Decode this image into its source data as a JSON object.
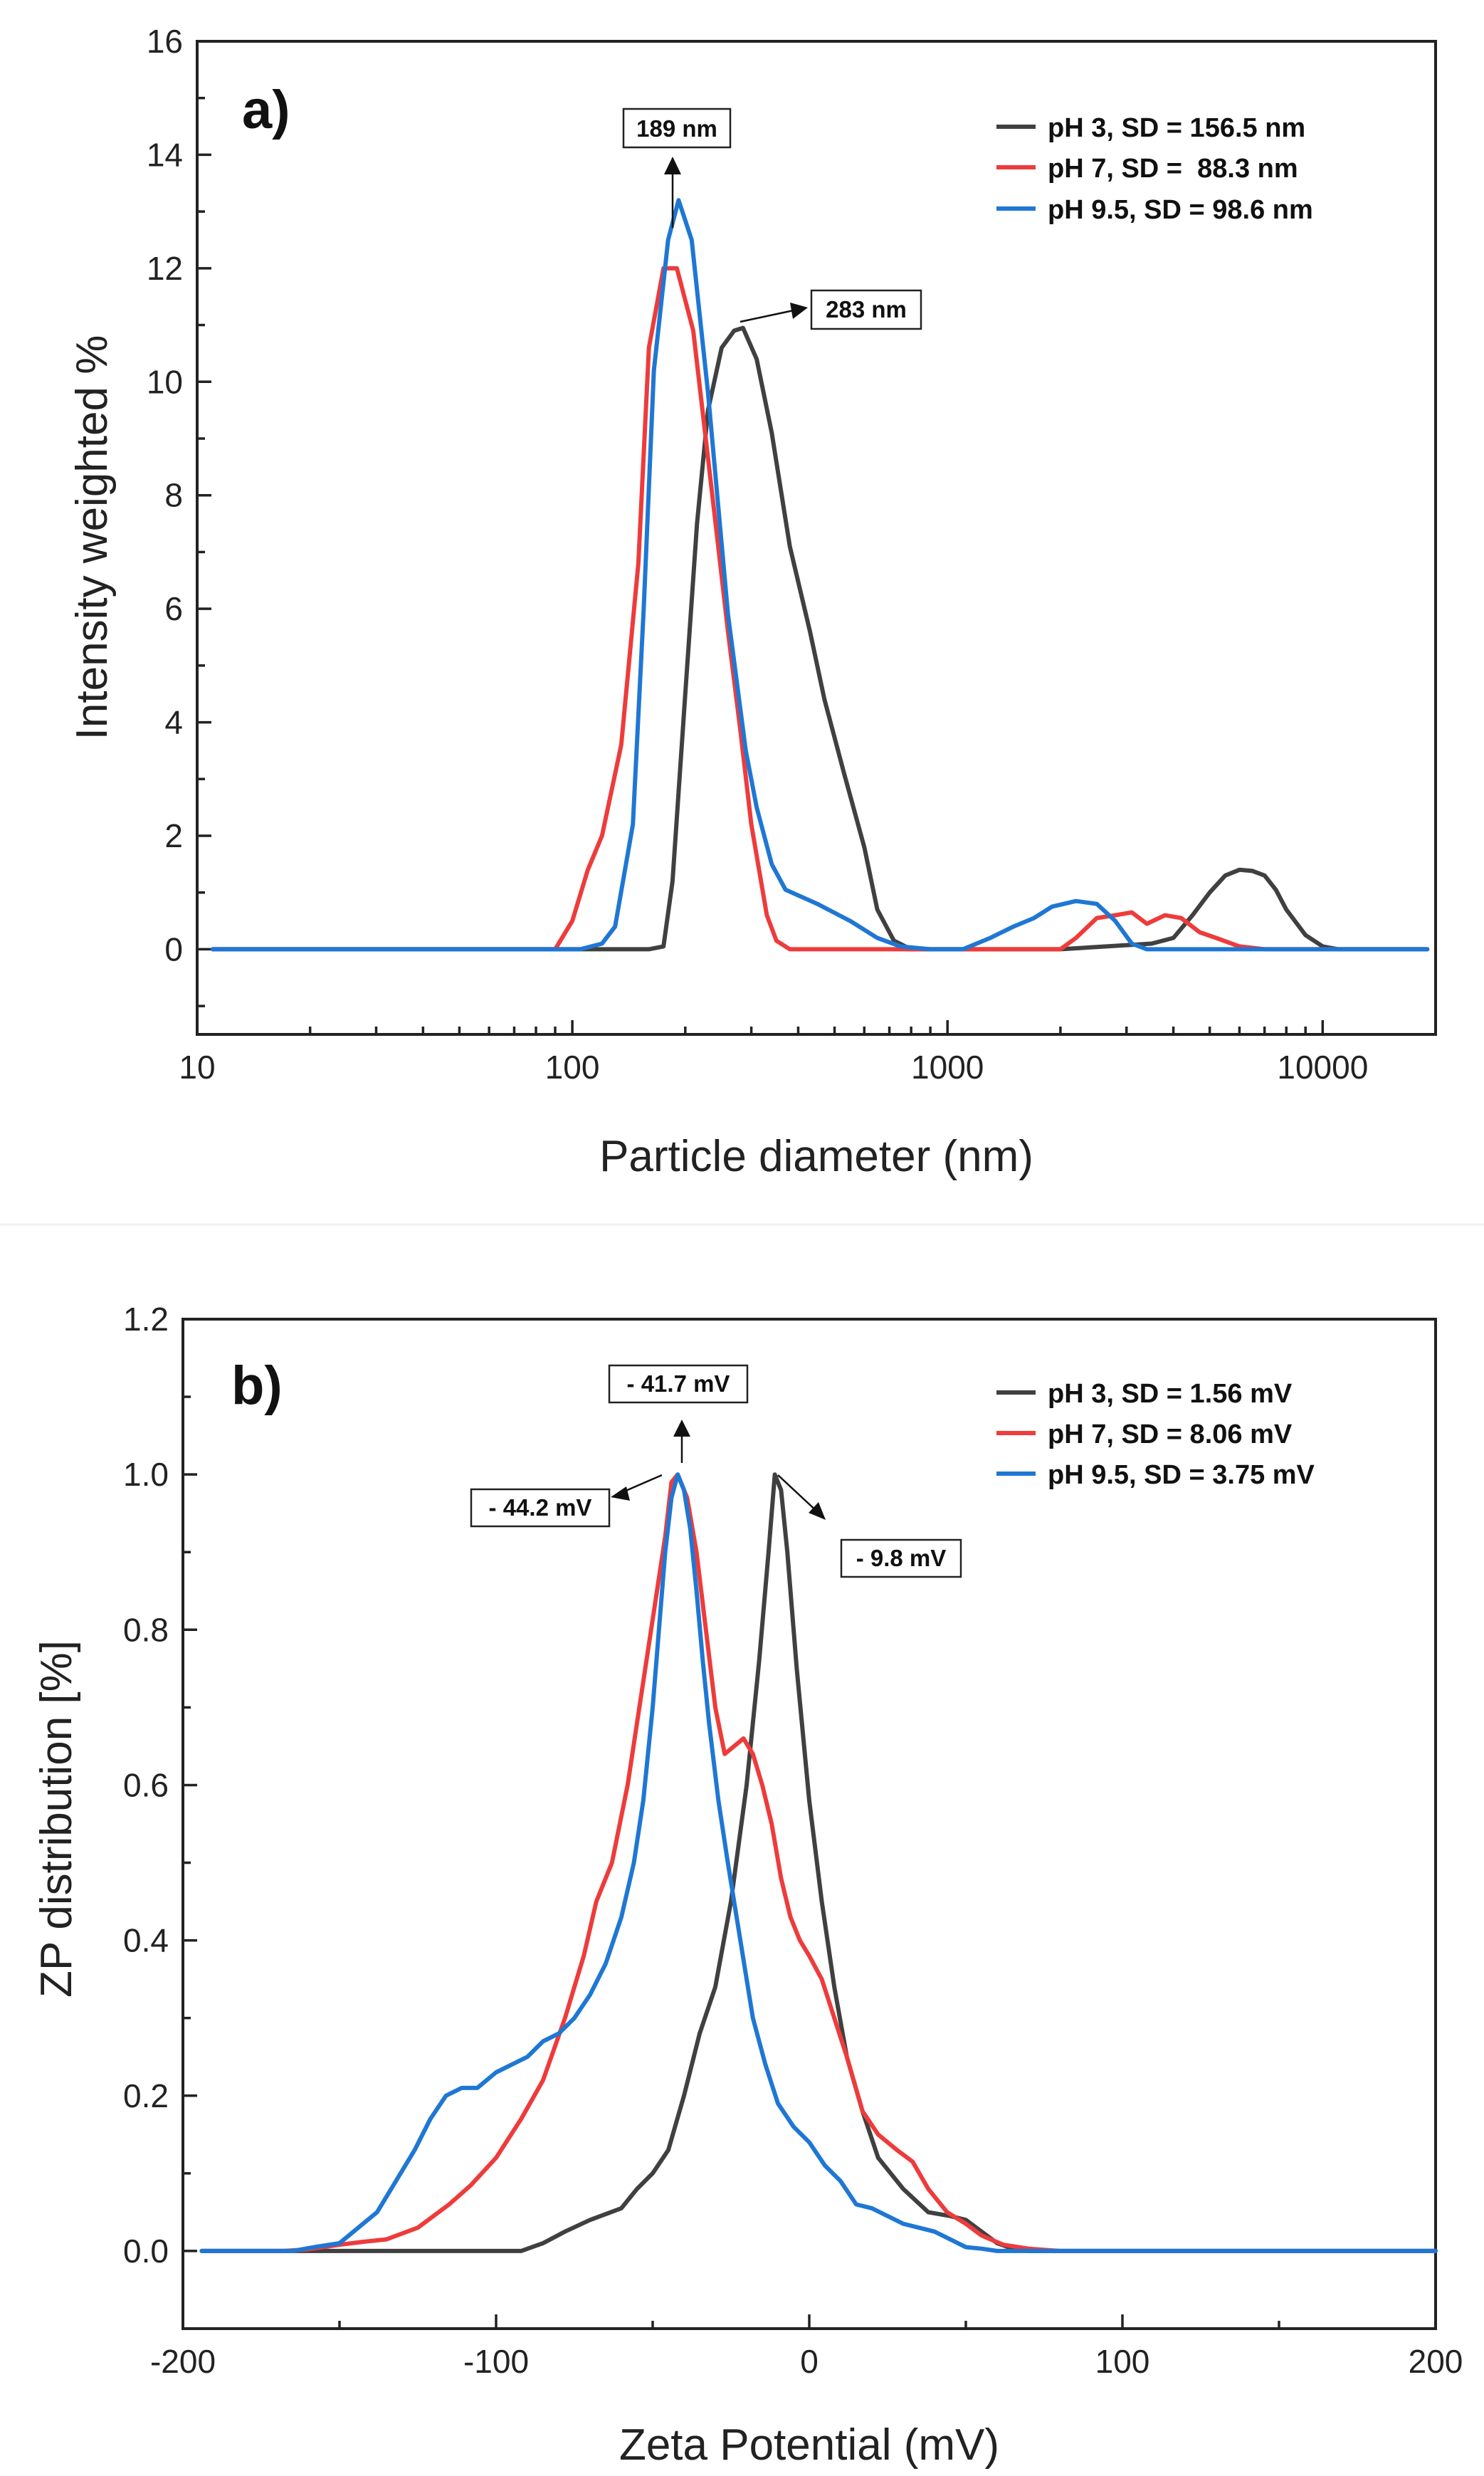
{
  "chart_data": [
    {
      "id": "a",
      "type": "line",
      "panel_label": "a)",
      "xscale": "log",
      "xlim": [
        10,
        20000
      ],
      "ylim": [
        -1.5,
        16
      ],
      "xticks": [
        10,
        100,
        1000,
        10000
      ],
      "xtick_labels": [
        "10",
        "100",
        "1000",
        "10000"
      ],
      "yticks": [
        0,
        2,
        4,
        6,
        8,
        10,
        12,
        14,
        16
      ],
      "ytick_labels": [
        "0",
        "2",
        "4",
        "6",
        "8",
        "10",
        "12",
        "14",
        "16"
      ],
      "xlabel": "Particle diameter (nm)",
      "ylabel": "Intensity weighted %",
      "legend_position": "top-right",
      "series": [
        {
          "name": "pH 3, SD = 156.5 nm",
          "color": "#404040",
          "points": [
            [
              11,
              0
            ],
            [
              160,
              0
            ],
            [
              175,
              0.05
            ],
            [
              185,
              1.2
            ],
            [
              200,
              4.5
            ],
            [
              215,
              7.5
            ],
            [
              230,
              9.5
            ],
            [
              250,
              10.6
            ],
            [
              270,
              10.9
            ],
            [
              285,
              10.95
            ],
            [
              310,
              10.4
            ],
            [
              340,
              9.1
            ],
            [
              380,
              7.1
            ],
            [
              430,
              5.6
            ],
            [
              470,
              4.4
            ],
            [
              530,
              3.1
            ],
            [
              600,
              1.8
            ],
            [
              650,
              0.7
            ],
            [
              720,
              0.15
            ],
            [
              800,
              0
            ],
            [
              2000,
              0
            ],
            [
              3500,
              0.1
            ],
            [
              4000,
              0.2
            ],
            [
              4500,
              0.6
            ],
            [
              5000,
              1.0
            ],
            [
              5500,
              1.3
            ],
            [
              6000,
              1.4
            ],
            [
              6500,
              1.38
            ],
            [
              7000,
              1.3
            ],
            [
              7500,
              1.05
            ],
            [
              8000,
              0.7
            ],
            [
              9000,
              0.25
            ],
            [
              10000,
              0.05
            ],
            [
              11000,
              0
            ],
            [
              19000,
              0
            ]
          ]
        },
        {
          "name": "pH 7, SD =  88.3 nm",
          "color": "#ee3b3b",
          "points": [
            [
              11,
              0
            ],
            [
              90,
              0
            ],
            [
              100,
              0.5
            ],
            [
              110,
              1.4
            ],
            [
              120,
              2.0
            ],
            [
              135,
              3.6
            ],
            [
              150,
              6.8
            ],
            [
              160,
              10.6
            ],
            [
              175,
              12.0
            ],
            [
              190,
              12.0
            ],
            [
              210,
              10.9
            ],
            [
              240,
              7.6
            ],
            [
              260,
              5.6
            ],
            [
              280,
              3.9
            ],
            [
              300,
              2.2
            ],
            [
              330,
              0.6
            ],
            [
              350,
              0.15
            ],
            [
              380,
              0
            ],
            [
              2000,
              0
            ],
            [
              2200,
              0.2
            ],
            [
              2500,
              0.55
            ],
            [
              2800,
              0.6
            ],
            [
              3100,
              0.65
            ],
            [
              3400,
              0.45
            ],
            [
              3800,
              0.6
            ],
            [
              4200,
              0.55
            ],
            [
              4700,
              0.3
            ],
            [
              5200,
              0.2
            ],
            [
              6000,
              0.05
            ],
            [
              7000,
              0
            ],
            [
              19000,
              0
            ]
          ]
        },
        {
          "name": "pH 9.5, SD = 98.6 nm",
          "color": "#1f77d4",
          "points": [
            [
              11,
              0
            ],
            [
              105,
              0
            ],
            [
              120,
              0.1
            ],
            [
              130,
              0.4
            ],
            [
              145,
              2.2
            ],
            [
              155,
              6.0
            ],
            [
              165,
              10.2
            ],
            [
              180,
              12.5
            ],
            [
              192,
              13.2
            ],
            [
              208,
              12.5
            ],
            [
              230,
              9.8
            ],
            [
              260,
              5.9
            ],
            [
              290,
              3.5
            ],
            [
              310,
              2.5
            ],
            [
              340,
              1.5
            ],
            [
              370,
              1.05
            ],
            [
              450,
              0.8
            ],
            [
              550,
              0.5
            ],
            [
              650,
              0.2
            ],
            [
              750,
              0.05
            ],
            [
              900,
              0
            ],
            [
              1100,
              0
            ],
            [
              1300,
              0.2
            ],
            [
              1500,
              0.4
            ],
            [
              1700,
              0.55
            ],
            [
              1900,
              0.75
            ],
            [
              2200,
              0.85
            ],
            [
              2500,
              0.8
            ],
            [
              2800,
              0.5
            ],
            [
              3100,
              0.1
            ],
            [
              3400,
              0
            ],
            [
              19000,
              0
            ]
          ]
        }
      ],
      "annotations": [
        {
          "text": "189 nm",
          "at": [
            192,
            13.2
          ]
        },
        {
          "text": "283 nm",
          "at": [
            285,
            10.95
          ]
        }
      ]
    },
    {
      "id": "b",
      "type": "line",
      "panel_label": "b)",
      "xscale": "linear",
      "xlim": [
        -200,
        200
      ],
      "ylim": [
        -0.1,
        1.2
      ],
      "xticks": [
        -200,
        -100,
        0,
        100,
        200
      ],
      "xtick_labels": [
        "-200",
        "-100",
        "0",
        "100",
        "200"
      ],
      "yticks": [
        0,
        0.2,
        0.4,
        0.6,
        0.8,
        1.0,
        1.2
      ],
      "ytick_labels": [
        "0.0",
        "0.2",
        "0.4",
        "0.6",
        "0.8",
        "1.0",
        "1.2"
      ],
      "xlabel": "Zeta Potential (mV)",
      "ylabel": "ZP distribution [%]",
      "legend_position": "top-right",
      "series": [
        {
          "name": "pH 3, SD = 1.56 mV",
          "color": "#404040",
          "points": [
            [
              -194,
              0
            ],
            [
              -92,
              0
            ],
            [
              -85,
              0.01
            ],
            [
              -78,
              0.025
            ],
            [
              -70,
              0.04
            ],
            [
              -60,
              0.055
            ],
            [
              -55,
              0.08
            ],
            [
              -50,
              0.1
            ],
            [
              -45,
              0.13
            ],
            [
              -40,
              0.2
            ],
            [
              -35,
              0.28
            ],
            [
              -30,
              0.34
            ],
            [
              -25,
              0.45
            ],
            [
              -20,
              0.6
            ],
            [
              -16,
              0.76
            ],
            [
              -13,
              0.9
            ],
            [
              -11,
              1.0
            ],
            [
              -9,
              0.98
            ],
            [
              -7,
              0.9
            ],
            [
              -4,
              0.75
            ],
            [
              0,
              0.58
            ],
            [
              4,
              0.45
            ],
            [
              8,
              0.34
            ],
            [
              12,
              0.25
            ],
            [
              17,
              0.18
            ],
            [
              22,
              0.12
            ],
            [
              30,
              0.08
            ],
            [
              38,
              0.05
            ],
            [
              45,
              0.045
            ],
            [
              50,
              0.04
            ],
            [
              55,
              0.025
            ],
            [
              60,
              0.01
            ],
            [
              65,
              0.003
            ],
            [
              70,
              0
            ],
            [
              200,
              0
            ]
          ]
        },
        {
          "name": "pH 7, SD = 8.06 mV",
          "color": "#ee3b3b",
          "points": [
            [
              -194,
              0
            ],
            [
              -168,
              0
            ],
            [
              -160,
              0.002
            ],
            [
              -150,
              0.008
            ],
            [
              -142,
              0.012
            ],
            [
              -135,
              0.015
            ],
            [
              -125,
              0.03
            ],
            [
              -115,
              0.06
            ],
            [
              -108,
              0.085
            ],
            [
              -100,
              0.12
            ],
            [
              -92,
              0.17
            ],
            [
              -85,
              0.22
            ],
            [
              -78,
              0.3
            ],
            [
              -72,
              0.38
            ],
            [
              -68,
              0.45
            ],
            [
              -63,
              0.5
            ],
            [
              -58,
              0.6
            ],
            [
              -55,
              0.68
            ],
            [
              -52,
              0.76
            ],
            [
              -49,
              0.84
            ],
            [
              -46,
              0.92
            ],
            [
              -44,
              0.99
            ],
            [
              -42,
              1.0
            ],
            [
              -39,
              0.97
            ],
            [
              -36,
              0.9
            ],
            [
              -33,
              0.8
            ],
            [
              -30,
              0.7
            ],
            [
              -27,
              0.64
            ],
            [
              -24,
              0.65
            ],
            [
              -21,
              0.66
            ],
            [
              -18,
              0.64
            ],
            [
              -15,
              0.6
            ],
            [
              -12,
              0.55
            ],
            [
              -9,
              0.48
            ],
            [
              -6,
              0.43
            ],
            [
              -3,
              0.4
            ],
            [
              0,
              0.38
            ],
            [
              4,
              0.35
            ],
            [
              8,
              0.3
            ],
            [
              12,
              0.25
            ],
            [
              17,
              0.18
            ],
            [
              22,
              0.15
            ],
            [
              28,
              0.13
            ],
            [
              33,
              0.115
            ],
            [
              38,
              0.08
            ],
            [
              44,
              0.05
            ],
            [
              50,
              0.035
            ],
            [
              55,
              0.02
            ],
            [
              62,
              0.008
            ],
            [
              70,
              0.003
            ],
            [
              80,
              0
            ],
            [
              200,
              0
            ]
          ]
        },
        {
          "name": "pH 9.5, SD = 3.75 mV",
          "color": "#1f77d4",
          "points": [
            [
              -194,
              0
            ],
            [
              -165,
              0
            ],
            [
              -158,
              0.005
            ],
            [
              -150,
              0.01
            ],
            [
              -144,
              0.03
            ],
            [
              -138,
              0.05
            ],
            [
              -132,
              0.09
            ],
            [
              -126,
              0.13
            ],
            [
              -121,
              0.17
            ],
            [
              -116,
              0.2
            ],
            [
              -111,
              0.21
            ],
            [
              -106,
              0.21
            ],
            [
              -100,
              0.23
            ],
            [
              -95,
              0.24
            ],
            [
              -90,
              0.25
            ],
            [
              -85,
              0.27
            ],
            [
              -80,
              0.28
            ],
            [
              -75,
              0.3
            ],
            [
              -70,
              0.33
            ],
            [
              -65,
              0.37
            ],
            [
              -60,
              0.43
            ],
            [
              -56,
              0.5
            ],
            [
              -53,
              0.58
            ],
            [
              -50,
              0.7
            ],
            [
              -48,
              0.8
            ],
            [
              -46,
              0.9
            ],
            [
              -44,
              0.97
            ],
            [
              -42,
              1.0
            ],
            [
              -40,
              0.98
            ],
            [
              -38,
              0.93
            ],
            [
              -36,
              0.85
            ],
            [
              -34,
              0.76
            ],
            [
              -32,
              0.68
            ],
            [
              -29,
              0.58
            ],
            [
              -26,
              0.5
            ],
            [
              -22,
              0.4
            ],
            [
              -18,
              0.3
            ],
            [
              -14,
              0.24
            ],
            [
              -10,
              0.19
            ],
            [
              -5,
              0.16
            ],
            [
              0,
              0.14
            ],
            [
              5,
              0.11
            ],
            [
              10,
              0.09
            ],
            [
              15,
              0.06
            ],
            [
              20,
              0.055
            ],
            [
              25,
              0.045
            ],
            [
              30,
              0.035
            ],
            [
              35,
              0.03
            ],
            [
              40,
              0.025
            ],
            [
              45,
              0.015
            ],
            [
              50,
              0.005
            ],
            [
              55,
              0.003
            ],
            [
              60,
              0
            ],
            [
              200,
              0
            ]
          ]
        }
      ],
      "annotations": [
        {
          "text": "- 41.7 mV",
          "at": [
            -42,
            1.0
          ]
        },
        {
          "text": "- 44.2 mV",
          "at": [
            -44,
            1.0
          ]
        },
        {
          "text": "- 9.8 mV",
          "at": [
            -11,
            1.0
          ]
        }
      ]
    }
  ]
}
